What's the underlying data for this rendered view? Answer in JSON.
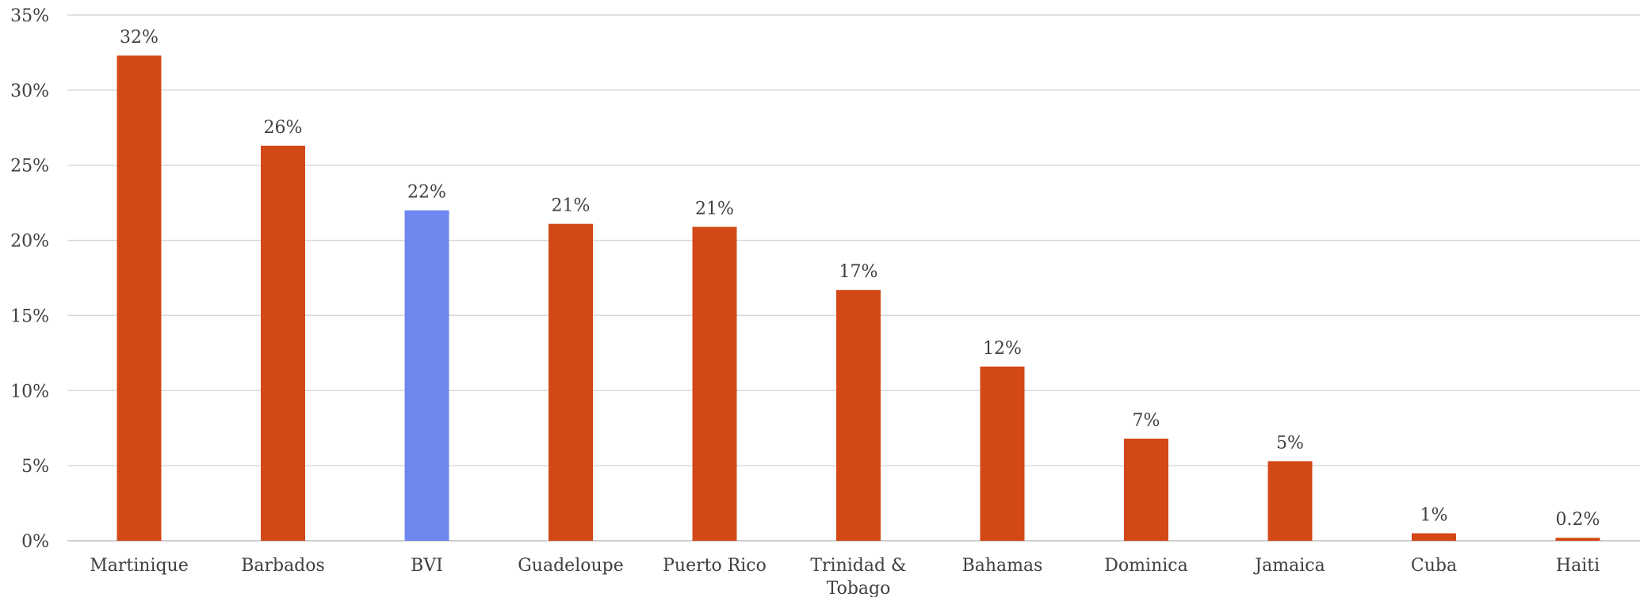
{
  "chart_data": {
    "type": "bar",
    "title": "",
    "xlabel": "",
    "ylabel": "",
    "ylim": [
      0,
      35
    ],
    "y_ticks": [
      "0%",
      "5%",
      "10%",
      "15%",
      "20%",
      "25%",
      "30%",
      "35%"
    ],
    "y_tick_values": [
      0,
      5,
      10,
      15,
      20,
      25,
      30,
      35
    ],
    "grid": "horizontal",
    "categories": [
      "Martinique",
      "Barbados",
      "BVI",
      "Guadeloupe",
      "Puerto Rico",
      "Trinidad & Tobago",
      "Bahamas",
      "Dominica",
      "Jamaica",
      "Cuba",
      "Haiti"
    ],
    "category_lines": [
      [
        "Martinique"
      ],
      [
        "Barbados"
      ],
      [
        "BVI"
      ],
      [
        "Guadeloupe"
      ],
      [
        "Puerto Rico"
      ],
      [
        "Trinidad &",
        "Tobago"
      ],
      [
        "Bahamas"
      ],
      [
        "Dominica"
      ],
      [
        "Jamaica"
      ],
      [
        "Cuba"
      ],
      [
        "Haiti"
      ]
    ],
    "values": [
      32.3,
      26.3,
      22.0,
      21.1,
      20.9,
      16.7,
      11.6,
      6.8,
      5.3,
      0.5,
      0.2
    ],
    "data_labels": [
      "32%",
      "26%",
      "22%",
      "21%",
      "21%",
      "17%",
      "12%",
      "7%",
      "5%",
      "1%",
      "0.2%"
    ],
    "highlight_category": "BVI",
    "colors": {
      "bar": "#d34817",
      "highlight": "#6d87ee",
      "gridline": "#d9d9d9",
      "axis": "#bfbfbf",
      "text": "#404040"
    }
  }
}
